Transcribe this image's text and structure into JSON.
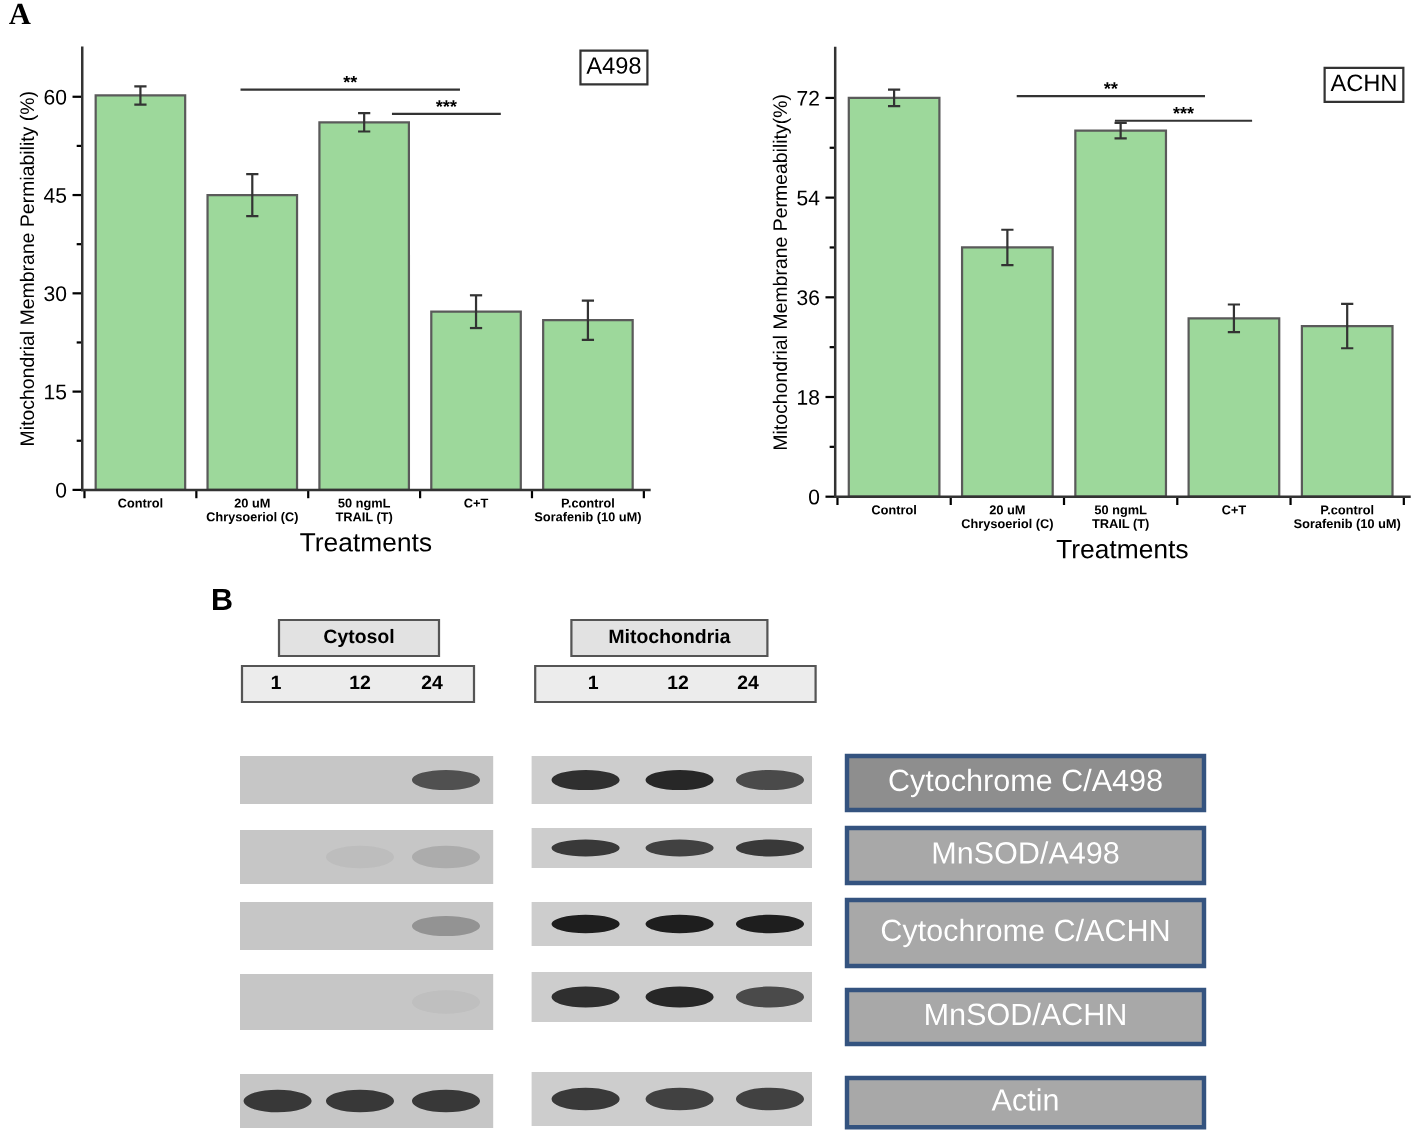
{
  "chart_data": [
    {
      "type": "bar",
      "title": "A498",
      "xlabel": "Treatments",
      "ylabel": "Mitochondrial Membrane Permiability (%)",
      "categories": [
        "Control",
        "20 uM Chrysoeriol (C)",
        "50 ngmL TRAIL (T)",
        "C+T",
        "P.control Sorafenib (10 uM)"
      ],
      "values": [
        60.2,
        45,
        56.1,
        27.2,
        25.9
      ],
      "errors": [
        1.4,
        3.2,
        1.4,
        2.5,
        3.0
      ],
      "color": "#9dd89b",
      "ylim": [
        0,
        67.5
      ],
      "yticks": [
        0,
        {
          "value": 7.5,
          "label": null
        },
        15,
        {
          "value": 22.5,
          "label": null
        },
        30,
        {
          "value": 37.5,
          "label": null
        },
        45,
        {
          "value": 52.5,
          "label": null
        },
        60
      ],
      "annotations": [
        "A",
        "**",
        "***"
      ]
    },
    {
      "type": "bar",
      "title": "ACHN",
      "xlabel": "Treatments",
      "ylabel": "Mitochondrial Membrane Permeability(%)",
      "categories": [
        "Control",
        "20 uM Chrysoeriol (C)",
        "50 ngmL TRAIL (T)",
        "C+T",
        "P.control Sorafenib (10 uM)"
      ],
      "values": [
        72,
        45,
        66.1,
        32.2,
        30.8
      ],
      "errors": [
        1.5,
        3.2,
        1.4,
        2.5,
        4.0
      ],
      "color": "#9dd89b",
      "ylim": [
        0,
        81
      ],
      "yticks": [
        0,
        {
          "value": 9,
          "label": null
        },
        18,
        {
          "value": 27,
          "label": null
        },
        36,
        {
          "value": 45,
          "label": null
        },
        54,
        {
          "value": 63,
          "label": null
        },
        72
      ],
      "annotations": [
        "**",
        "***"
      ]
    },
    {
      "type": "other",
      "annotations": [
        "B",
        "Cytosol",
        "Mitochondria",
        "1",
        "12",
        "24",
        "1",
        "12",
        "24",
        "Cytochrome C/A498",
        "MnSOD/A498",
        "Cytochrome C/ACHN",
        "MnSOD/ACHN",
        "Actin"
      ]
    }
  ]
}
